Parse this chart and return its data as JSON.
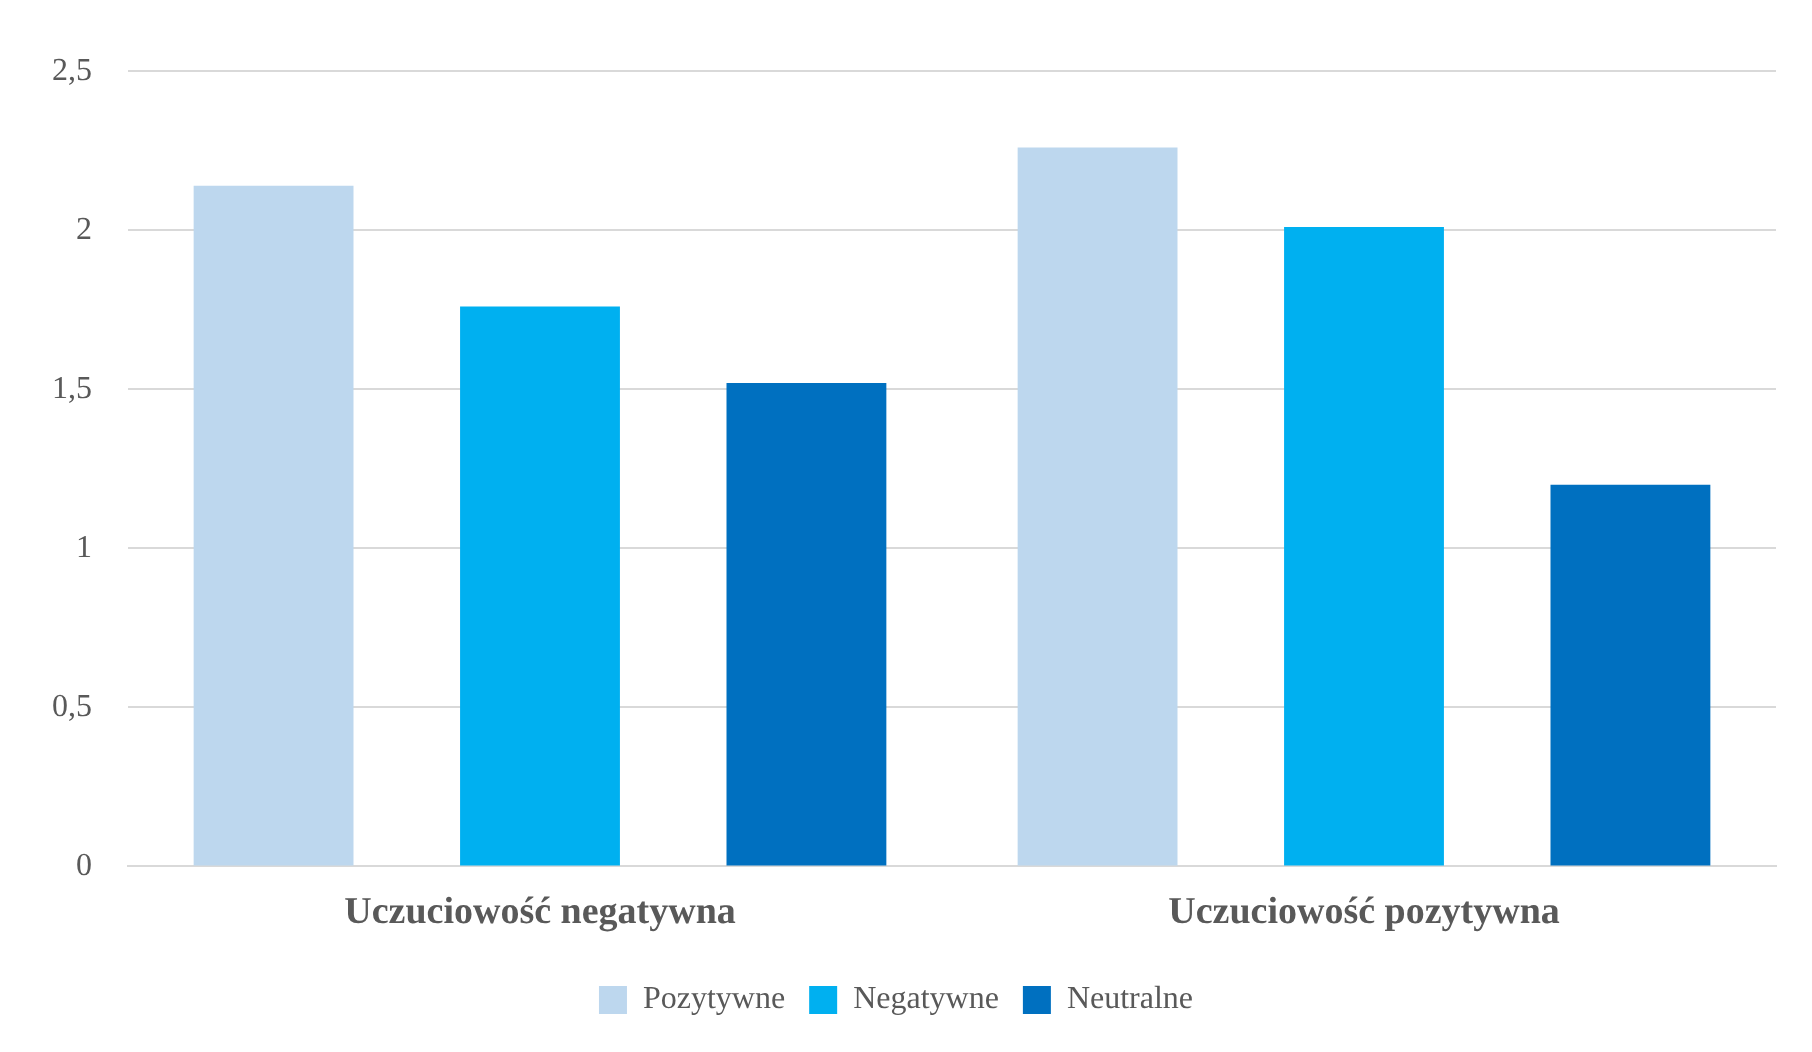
{
  "chart_data": {
    "type": "bar",
    "categories": [
      "Uczuciowość negatywna",
      "Uczuciowość pozytywna"
    ],
    "series": [
      {
        "name": "Pozytywne",
        "color": "#bdd7ee",
        "values": [
          2.14,
          2.26
        ]
      },
      {
        "name": "Negatywne",
        "color": "#00b0f0",
        "values": [
          1.76,
          2.01
        ]
      },
      {
        "name": "Neutralne",
        "color": "#0070c0",
        "values": [
          1.52,
          1.2
        ]
      }
    ],
    "ylim": [
      0,
      2.5
    ],
    "yticks": [
      0,
      {
        "value": 0.5,
        "label": "0,5"
      },
      1,
      {
        "value": 1.5,
        "label": "1,5"
      },
      2,
      {
        "value": 2.5,
        "label": "2,5"
      }
    ],
    "grid": "y",
    "legend": "bottom"
  }
}
